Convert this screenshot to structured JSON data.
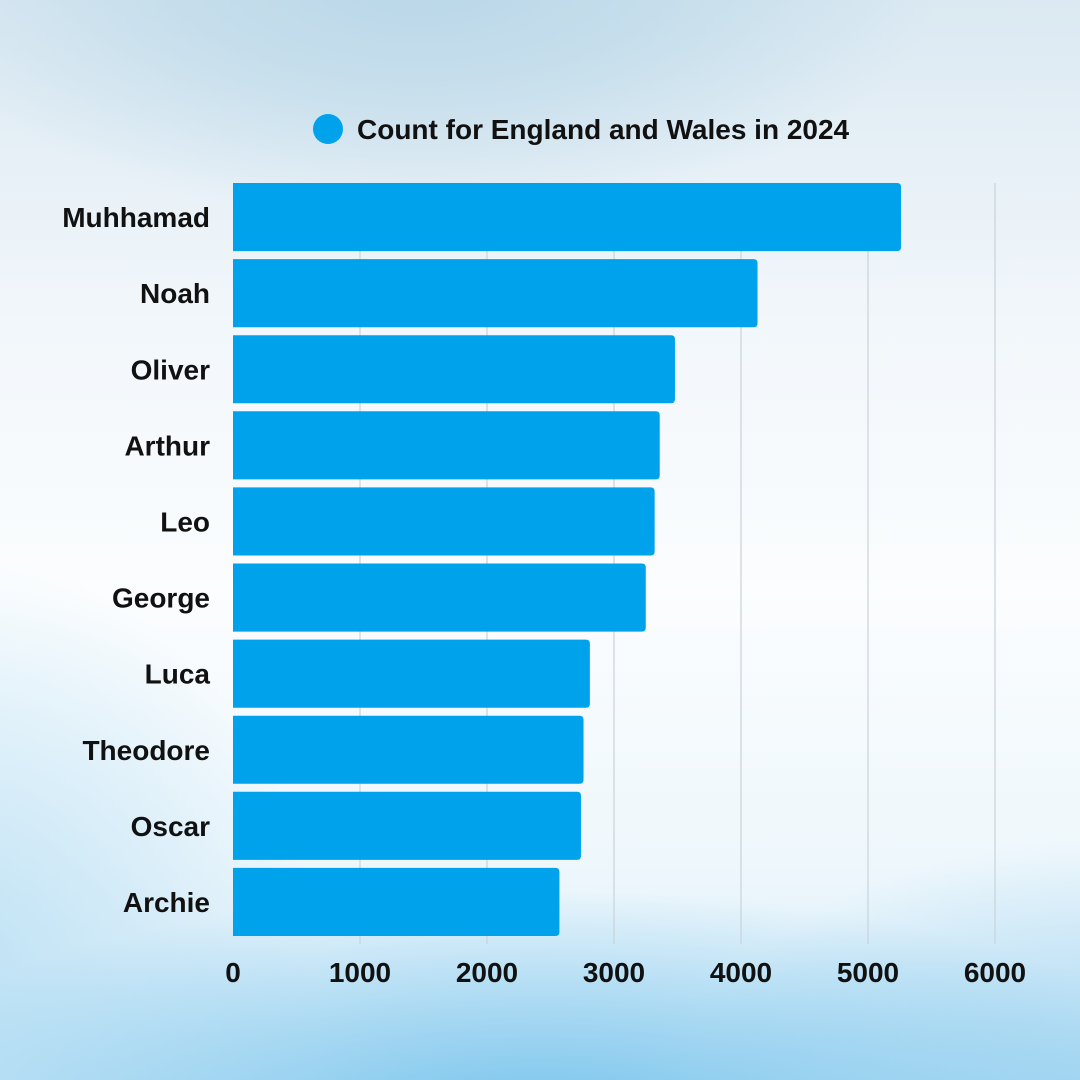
{
  "chart_data": {
    "type": "bar",
    "orientation": "horizontal",
    "categories": [
      "Muhhamad",
      "Noah",
      "Oliver",
      "Arthur",
      "Leo",
      "George",
      "Luca",
      "Theodore",
      "Oscar",
      "Archie"
    ],
    "series": [
      {
        "name": "Count for England and Wales in 2024",
        "values": [
          5260,
          4130,
          3480,
          3360,
          3320,
          3250,
          2810,
          2760,
          2740,
          2570
        ]
      }
    ],
    "xlim": [
      0,
      6000
    ],
    "xticks": [
      0,
      1000,
      2000,
      3000,
      4000,
      5000,
      6000
    ],
    "grid": "vertical",
    "legend_position": "top",
    "colors": {
      "bar": "#00a2ec",
      "grid": "#c9d3da",
      "text": "#111111"
    }
  }
}
